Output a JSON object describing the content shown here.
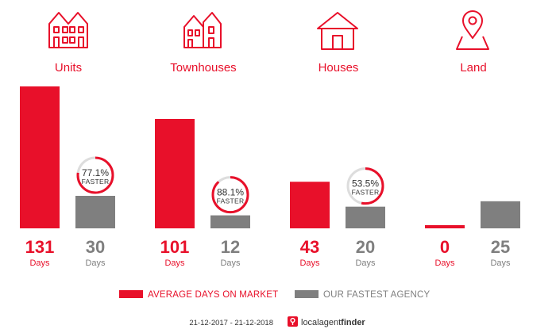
{
  "chart_data": {
    "type": "bar",
    "categories": [
      "Units",
      "Townhouses",
      "Houses",
      "Land"
    ],
    "series": [
      {
        "name": "AVERAGE DAYS ON MARKET",
        "values": [
          131,
          101,
          43,
          0
        ],
        "color": "#e8102a"
      },
      {
        "name": "OUR FASTEST AGENCY",
        "values": [
          30,
          12,
          20,
          25
        ],
        "color": "#7f7f7f"
      }
    ],
    "value_unit": "Days",
    "faster": [
      {
        "category": "Units",
        "percent": 77.1,
        "label": "77.1%"
      },
      {
        "category": "Townhouses",
        "percent": 88.1,
        "label": "88.1%"
      },
      {
        "category": "Houses",
        "percent": 53.5,
        "label": "53.5%"
      }
    ],
    "faster_text": "FASTER",
    "ylim": [
      0,
      131
    ],
    "grid": false,
    "legend_position": "bottom",
    "icons": [
      "units-icon",
      "townhouses-icon",
      "houses-icon",
      "land-icon"
    ]
  },
  "footer": {
    "date_range": "21-12-2017 - 21-12-2018",
    "logo_text_local": "localagent",
    "logo_text_finder": "finder"
  },
  "colors": {
    "accent": "#e8102a",
    "secondary": "#7f7f7f",
    "track": "#dddddd"
  }
}
